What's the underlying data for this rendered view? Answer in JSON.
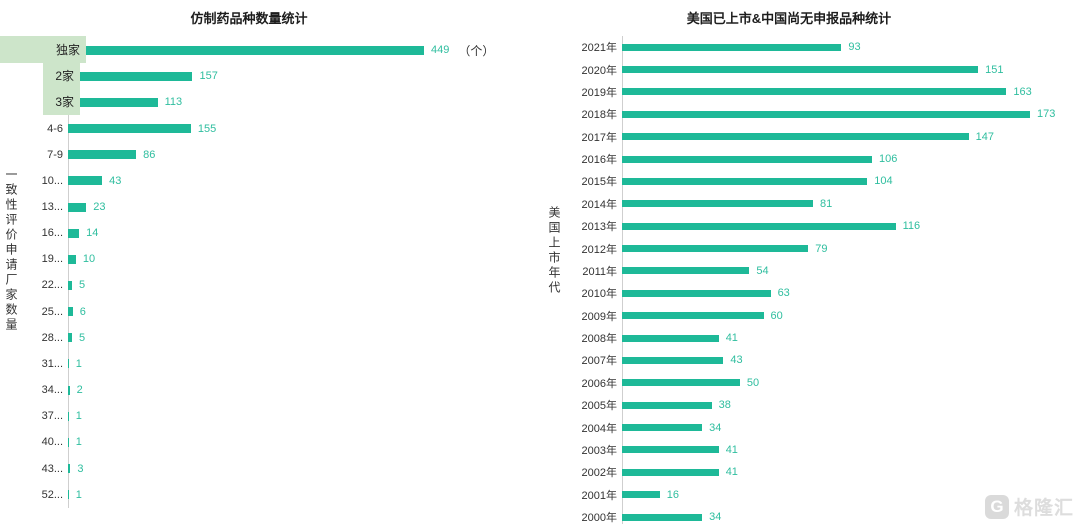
{
  "colors": {
    "bar": "#1eb998",
    "value_label": "#2fbe9f",
    "highlight_bg": "#cde5ca",
    "axis_line": "#cfcfcf",
    "category_label": "#333333",
    "title": "#1d1d1d",
    "watermark": "#dcdcdc"
  },
  "chart_data": [
    {
      "type": "bar",
      "orientation": "horizontal",
      "title": "仿制药品种数量统计",
      "ylabel": "一致性评价申请厂家数量",
      "xlabel": "",
      "unit_label": "（个）",
      "categories": [
        "独家",
        "2家",
        "3家",
        "4-6",
        "7-9",
        "10...",
        "13...",
        "16...",
        "19...",
        "22...",
        "25...",
        "28...",
        "31...",
        "34...",
        "37...",
        "40...",
        "43...",
        "52..."
      ],
      "values": [
        449,
        157,
        113,
        155,
        86,
        43,
        23,
        14,
        10,
        5,
        6,
        5,
        1,
        2,
        1,
        1,
        3,
        1
      ],
      "highlighted_categories": [
        "独家",
        "2家",
        "3家"
      ],
      "xlim": [
        0,
        449
      ],
      "grid": false,
      "legend": false
    },
    {
      "type": "bar",
      "orientation": "horizontal",
      "title": "美国已上市&中国尚无申报品种统计",
      "ylabel": "美国上市年代",
      "xlabel": "",
      "categories": [
        "2021年",
        "2020年",
        "2019年",
        "2018年",
        "2017年",
        "2016年",
        "2015年",
        "2014年",
        "2013年",
        "2012年",
        "2011年",
        "2010年",
        "2009年",
        "2008年",
        "2007年",
        "2006年",
        "2005年",
        "2004年",
        "2003年",
        "2002年",
        "2001年",
        "2000年"
      ],
      "values": [
        93,
        151,
        163,
        173,
        147,
        106,
        104,
        81,
        116,
        79,
        54,
        63,
        60,
        41,
        43,
        50,
        38,
        34,
        41,
        41,
        16,
        34
      ],
      "xlim": [
        0,
        173
      ],
      "grid": false,
      "legend": false
    }
  ],
  "watermark": {
    "logo_letter": "G",
    "text": "格隆汇"
  }
}
